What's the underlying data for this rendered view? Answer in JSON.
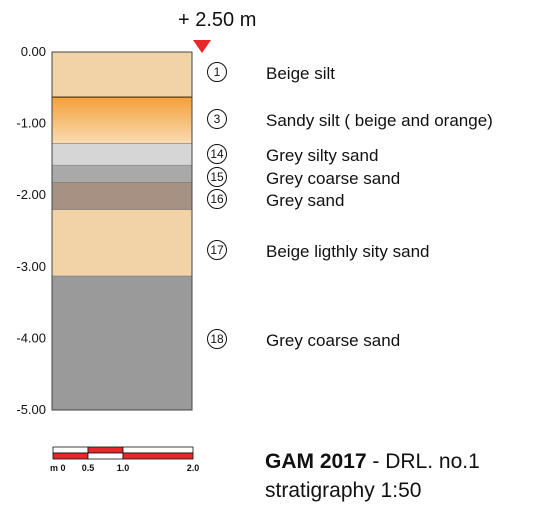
{
  "elevation": {
    "label": "+ 2.50 m",
    "marker_color": "#e8262c"
  },
  "depth_axis": {
    "ticks": [
      "0.00",
      "-1.00",
      "-2.00",
      "-3.00",
      "-4.00",
      "-5.00"
    ],
    "tick_values": [
      0,
      -1,
      -2,
      -3,
      -4,
      -5
    ]
  },
  "layers": [
    {
      "id": "1",
      "name": "Beige silt",
      "top": 0.0,
      "bottom": -0.63,
      "color": "#f2d3a8"
    },
    {
      "id": "3",
      "name": "Sandy silt  ( beige and orange)",
      "top": -0.63,
      "bottom": -1.28,
      "color": "#f6b65c",
      "gradient": [
        "#f4a038",
        "#f9dcb4"
      ]
    },
    {
      "id": "14",
      "name": "Grey silty sand",
      "top": -1.28,
      "bottom": -1.58,
      "color": "#d6d6d6"
    },
    {
      "id": "15",
      "name": "Grey coarse sand",
      "top": -1.58,
      "bottom": -1.82,
      "color": "#a9a9a9"
    },
    {
      "id": "16",
      "name": "Grey sand",
      "top": -1.82,
      "bottom": -2.2,
      "color": "#a79183"
    },
    {
      "id": "17",
      "name": "Beige ligthly sity sand",
      "top": -2.2,
      "bottom": -3.13,
      "color": "#f2d3a8"
    },
    {
      "id": "18",
      "name": "Grey coarse sand",
      "top": -3.13,
      "bottom": -5.0,
      "color": "#9a9a9a"
    }
  ],
  "scale_bar": {
    "labels": [
      "m 0",
      "0.5",
      "1.0",
      "2.0"
    ],
    "colors": {
      "fill": "#e8262c",
      "empty": "#ffffff"
    }
  },
  "caption": {
    "project": "GAM  2017",
    "borehole": " - DRL. no.1",
    "subtitle": "stratigraphy 1:50"
  }
}
